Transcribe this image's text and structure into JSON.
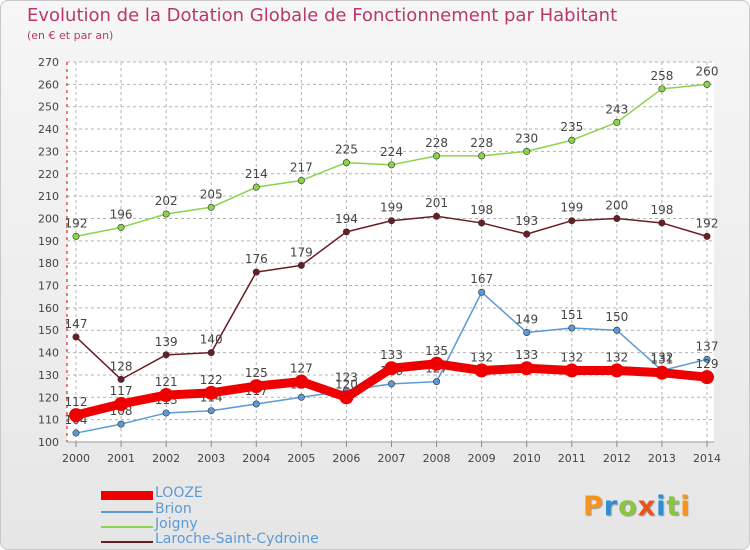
{
  "title": "Evolution de la Dotation Globale de Fonctionnement par Habitant",
  "subtitle": "(en € et par an)",
  "logo": {
    "text": "Proxiti",
    "colors": [
      "#f7941d",
      "#2e8fd0",
      "#8bc53f",
      "#e8541c",
      "#2e8fd0",
      "#8bc53f",
      "#f7941d"
    ]
  },
  "colors": {
    "title": "#b8386e",
    "grid": "#b4b4b4",
    "axis_red": "#dd0000",
    "tick_text": "#444444"
  },
  "chart_data": {
    "type": "line",
    "title": "Evolution de la Dotation Globale de Fonctionnement par Habitant",
    "subtitle": "(en € et par an)",
    "x": [
      "2000",
      "2001",
      "2002",
      "2003",
      "2004",
      "2005",
      "2006",
      "2007",
      "2008",
      "2009",
      "2010",
      "2011",
      "2012",
      "2013",
      "2014"
    ],
    "ylim": [
      100,
      270
    ],
    "yticks": [
      100,
      110,
      120,
      130,
      140,
      150,
      160,
      170,
      180,
      190,
      200,
      210,
      220,
      230,
      240,
      250,
      260,
      270
    ],
    "grid": true,
    "legend_position": "bottom-left",
    "series": [
      {
        "name": "LOOZE",
        "color": "#ee0000",
        "values": [
          112,
          117,
          121,
          122,
          125,
          127,
          120,
          133,
          135,
          132,
          133,
          132,
          132,
          131,
          129
        ],
        "labels": [
          "112",
          "117",
          "121",
          "122",
          "125",
          "127",
          "120",
          "133",
          "135",
          "132",
          "133",
          "132",
          "132",
          "131",
          "129"
        ]
      },
      {
        "name": "Brion",
        "color": "#5b9bd5",
        "values": [
          104,
          108,
          113,
          114,
          117,
          120,
          123,
          126,
          127,
          167,
          149,
          151,
          150,
          132,
          137
        ],
        "labels": [
          "104",
          "108",
          "113",
          "114",
          "117",
          "120",
          "123",
          "126",
          "127",
          "167",
          "149",
          "151",
          "150",
          "132",
          "137"
        ]
      },
      {
        "name": "Joigny",
        "color": "#8cd34c",
        "values": [
          192,
          196,
          202,
          205,
          214,
          217,
          225,
          224,
          228,
          228,
          230,
          235,
          243,
          258,
          260
        ],
        "labels": [
          "192",
          "196",
          "202",
          "205",
          "214",
          "217",
          "225",
          "224",
          "228",
          "228",
          "230",
          "235",
          "243",
          "258",
          "260"
        ]
      },
      {
        "name": "Laroche-Saint-Cydroine",
        "color": "#6b1d24",
        "values": [
          147,
          128,
          139,
          140,
          176,
          179,
          194,
          199,
          201,
          198,
          193,
          199,
          200,
          198,
          192
        ],
        "labels": [
          "147",
          "128",
          "139",
          "140",
          "176",
          "179",
          "194",
          "199",
          "201",
          "198",
          "193",
          "199",
          "200",
          "198",
          "192"
        ]
      }
    ]
  }
}
